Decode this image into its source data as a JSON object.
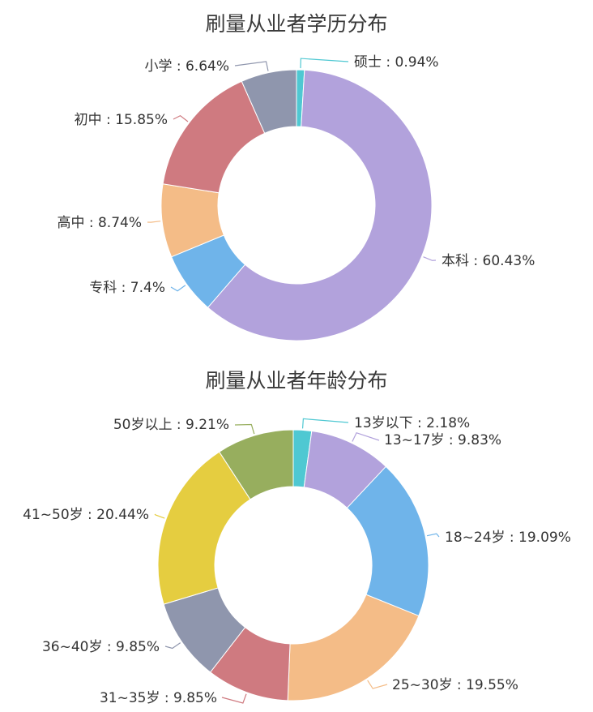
{
  "chart_data": [
    {
      "type": "pie",
      "title": "刷量从业者学历分布",
      "slices": [
        {
          "label": "硕士 : 0.94%",
          "name": "硕士",
          "value": 0.94,
          "color": "#4fc8d2"
        },
        {
          "label": "本科 : 60.43%",
          "name": "本科",
          "value": 60.43,
          "color": "#b2a2dc"
        },
        {
          "label": "专科 : 7.4%",
          "name": "专科",
          "value": 7.4,
          "color": "#6fb4ea"
        },
        {
          "label": "高中 : 8.74%",
          "name": "高中",
          "value": 8.74,
          "color": "#f4bc87"
        },
        {
          "label": "初中 : 15.85%",
          "name": "初中",
          "value": 15.85,
          "color": "#cf7a80"
        },
        {
          "label": "小学 : 6.64%",
          "name": "小学",
          "value": 6.64,
          "color": "#8f96ad"
        }
      ]
    },
    {
      "type": "pie",
      "title": "刷量从业者年龄分布",
      "slices": [
        {
          "label": "13岁以下 : 2.18%",
          "name": "13岁以下",
          "value": 2.18,
          "color": "#4fc8d2"
        },
        {
          "label": "13~17岁 : 9.83%",
          "name": "13~17岁",
          "value": 9.83,
          "color": "#b2a2dc"
        },
        {
          "label": "18~24岁 : 19.09%",
          "name": "18~24岁",
          "value": 19.09,
          "color": "#6fb4ea"
        },
        {
          "label": "25~30岁 : 19.55%",
          "name": "25~30岁",
          "value": 19.55,
          "color": "#f4bc87"
        },
        {
          "label": "31~35岁 : 9.85%",
          "name": "31~35岁",
          "value": 9.85,
          "color": "#cf7a80"
        },
        {
          "label": "36~40岁 : 9.85%",
          "name": "36~40岁",
          "value": 9.85,
          "color": "#8f96ad"
        },
        {
          "label": "41~50岁 : 20.44%",
          "name": "41~50岁",
          "value": 20.44,
          "color": "#e5cd40"
        },
        {
          "label": "50岁以上 : 9.21%",
          "name": "50岁以上",
          "value": 9.21,
          "color": "#97ae5e"
        }
      ]
    }
  ]
}
